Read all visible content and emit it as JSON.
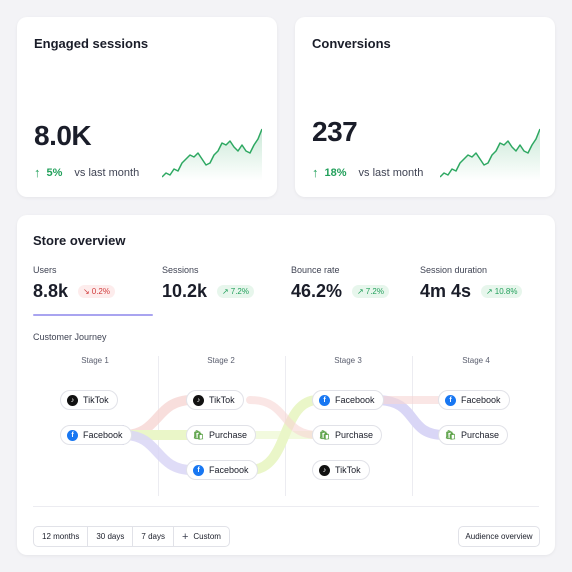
{
  "engaged": {
    "title": "Engaged sessions",
    "value": "8.0K",
    "delta_pct": "5%",
    "delta_note": "vs last month",
    "arrow_icon": "arrow-up-icon"
  },
  "conversions": {
    "title": "Conversions",
    "value": "237",
    "delta_pct": "18%",
    "delta_note": "vs last month",
    "arrow_icon": "arrow-up-icon"
  },
  "store": {
    "title": "Store overview",
    "metrics": [
      {
        "label": "Users",
        "value": "8.8k",
        "change": "0.2%",
        "direction": "down"
      },
      {
        "label": "Sessions",
        "value": "10.2k",
        "change": "7.2%",
        "direction": "up"
      },
      {
        "label": "Bounce rate",
        "value": "46.2%",
        "change": "7.2%",
        "direction": "up"
      },
      {
        "label": "Session duration",
        "value": "4m 4s",
        "change": "10.8%",
        "direction": "up"
      }
    ],
    "journey": {
      "label": "Customer Journey",
      "stages": [
        "Stage 1",
        "Stage 2",
        "Stage 3",
        "Stage 4"
      ],
      "nodes": {
        "s1": [
          {
            "label": "TikTok",
            "icon": "tiktok-icon"
          },
          {
            "label": "Facebook",
            "icon": "facebook-icon"
          }
        ],
        "s2": [
          {
            "label": "TikTok",
            "icon": "tiktok-icon"
          },
          {
            "label": "Purchase",
            "icon": "shopify-icon"
          },
          {
            "label": "Facebook",
            "icon": "facebook-icon"
          }
        ],
        "s3": [
          {
            "label": "Facebook",
            "icon": "facebook-icon"
          },
          {
            "label": "Purchase",
            "icon": "shopify-icon"
          },
          {
            "label": "TikTok",
            "icon": "tiktok-icon"
          }
        ],
        "s4": [
          {
            "label": "Facebook",
            "icon": "facebook-icon"
          },
          {
            "label": "Purchase",
            "icon": "shopify-icon"
          }
        ]
      }
    },
    "range_options": [
      "12 months",
      "30 days",
      "7 days",
      "Custom"
    ],
    "audience_button": "Audience overview"
  },
  "colors": {
    "positive": "#22a05b",
    "negative": "#d03b3b",
    "accent": "#a9a4f0",
    "spark_line": "#2ea862",
    "flow_red": "#f6d6d3",
    "flow_lilac": "#d9d6f6",
    "flow_lime": "#eaf6c8"
  }
}
